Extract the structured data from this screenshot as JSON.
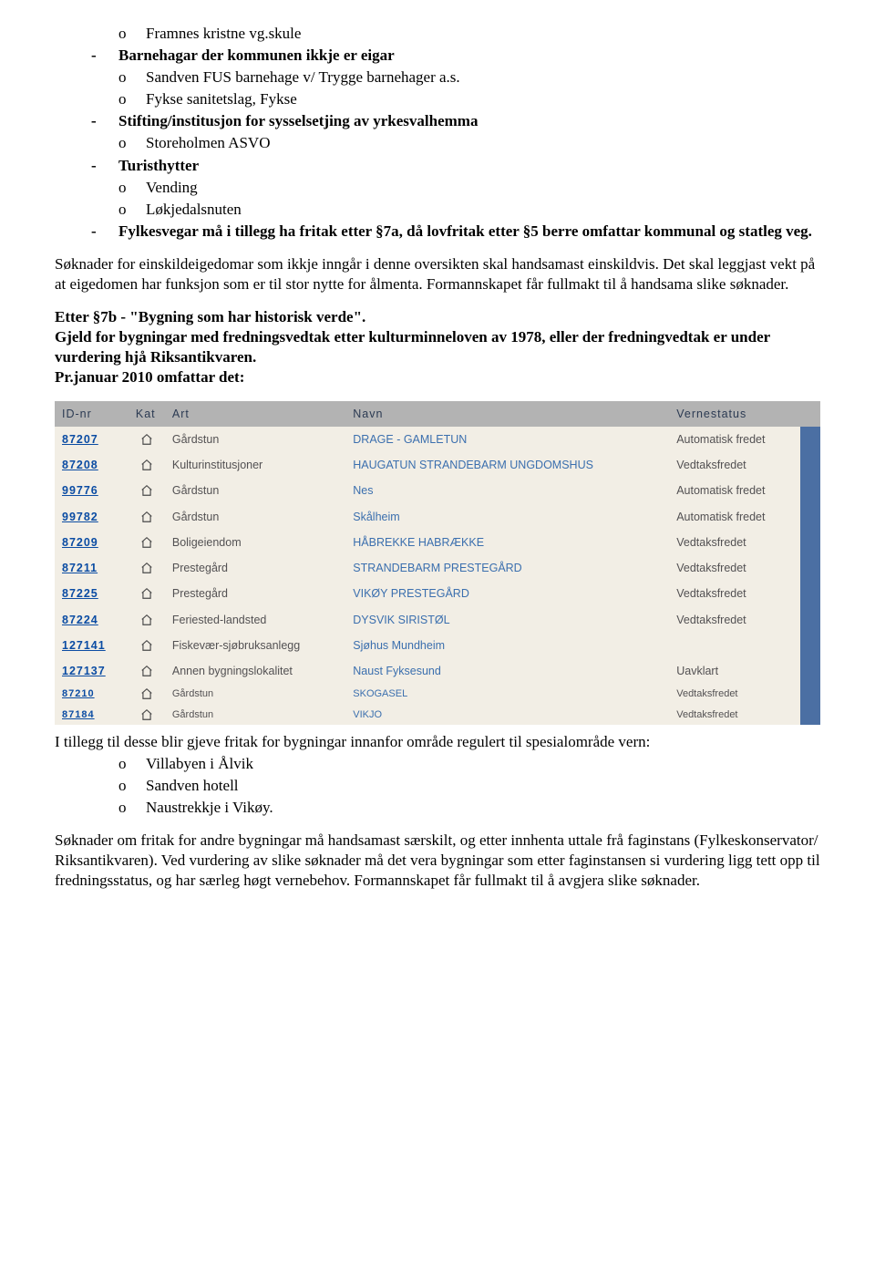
{
  "top_list": [
    {
      "type": "circ",
      "text": "Framnes kristne vg.skule"
    },
    {
      "type": "dash",
      "bold": true,
      "text": "Barnehagar der kommunen ikkje er eigar"
    },
    {
      "type": "circ",
      "text": "Sandven FUS barnehage v/ Trygge barnehager a.s."
    },
    {
      "type": "circ",
      "text": "Fykse sanitetslag, Fykse"
    },
    {
      "type": "dash",
      "text": ""
    },
    {
      "type": "dash",
      "bold": true,
      "text": "Stifting/institusjon for sysselsetjing av yrkesvalhemma"
    },
    {
      "type": "circ",
      "text": "Storeholmen ASVO"
    },
    {
      "type": "dash",
      "bold": true,
      "text": "Turisthytter"
    },
    {
      "type": "circ",
      "text": "Vending"
    },
    {
      "type": "circ",
      "text": "Løkjedalsnuten"
    },
    {
      "type": "dash",
      "bold": true,
      "text": "Fylkesvegar må i tillegg ha fritak etter §7a, då lovfritak etter §5 berre omfattar kommunal og statleg veg.",
      "wrap": true
    }
  ],
  "para1": "Søknader for einskildeigedomar som ikkje inngår i denne oversikten skal handsamast einskildvis. Det skal leggjast vekt på at eigedomen har funksjon som er til stor nytte for ålmenta. Formannskapet får fullmakt til å handsama slike søknader.",
  "heading2a": "Etter §7b - \"Bygning som har historisk verde\".",
  "heading2b": "Gjeld for  bygningar med fredningsvedtak etter kulturminneloven av 1978, eller der fredningvedtak er under vurdering hjå Riksantikvaren.",
  "heading2c": "Pr.januar 2010 omfattar det:",
  "table": {
    "headers": {
      "id": "ID-nr",
      "kat": "Kat",
      "art": "Art",
      "navn": "Navn",
      "status": "Vernestatus"
    },
    "rows": [
      {
        "id": "87207",
        "art": "Gårdstun",
        "navn": "DRAGE - GAMLETUN",
        "status": "Automatisk fredet"
      },
      {
        "id": "87208",
        "art": "Kulturinstitusjoner",
        "navn": "HAUGATUN STRANDEBARM UNGDOMSHUS",
        "status": "Vedtaksfredet"
      },
      {
        "id": "99776",
        "art": "Gårdstun",
        "navn": "Nes",
        "status": "Automatisk fredet"
      },
      {
        "id": "99782",
        "art": "Gårdstun",
        "navn": "Skålheim",
        "status": "Automatisk fredet"
      },
      {
        "id": "87209",
        "art": "Boligeiendom",
        "navn": "HÅBREKKE HABRÆKKE",
        "status": "Vedtaksfredet"
      },
      {
        "id": "87211",
        "art": "Prestegård",
        "navn": "STRANDEBARM PRESTEGÅRD",
        "status": "Vedtaksfredet"
      },
      {
        "id": "87225",
        "art": "Prestegård",
        "navn": "VIKØY PRESTEGÅRD",
        "status": "Vedtaksfredet"
      },
      {
        "id": "87224",
        "art": "Feriested-landsted",
        "navn": "DYSVIK SIRISTØL",
        "status": "Vedtaksfredet"
      },
      {
        "id": "127141",
        "art": "Fiskevær-sjøbruksanlegg",
        "navn": "Sjøhus Mundheim",
        "status": ""
      },
      {
        "id": "127137",
        "art": "Annen bygningslokalitet",
        "navn": "Naust Fyksesund",
        "status": "Uavklart"
      },
      {
        "id": "87210",
        "art": "Gårdstun",
        "navn": "SKOGASEL",
        "status": "Vedtaksfredet",
        "small": true
      },
      {
        "id": "87184",
        "art": "Gårdstun",
        "navn": "VIKJO",
        "status": "Vedtaksfredet",
        "small": true
      }
    ]
  },
  "after_table": "I tillegg til desse blir gjeve fritak for bygningar innanfor område regulert til spesialområde vern:",
  "after_list": [
    "Villabyen i Ålvik",
    "Sandven hotell",
    "Naustrekkje i Vikøy."
  ],
  "para_end": "Søknader om fritak for andre bygningar må handsamast særskilt, og etter innhenta uttale frå faginstans (Fylkeskonservator/ Riksantikvaren). Ved vurdering av slike søknader  må det vera bygningar som etter faginstansen si vurdering ligg tett opp til fredningsstatus, og har særleg høgt vernebehov. Formannskapet får fullmakt til å avgjera slike søknader."
}
